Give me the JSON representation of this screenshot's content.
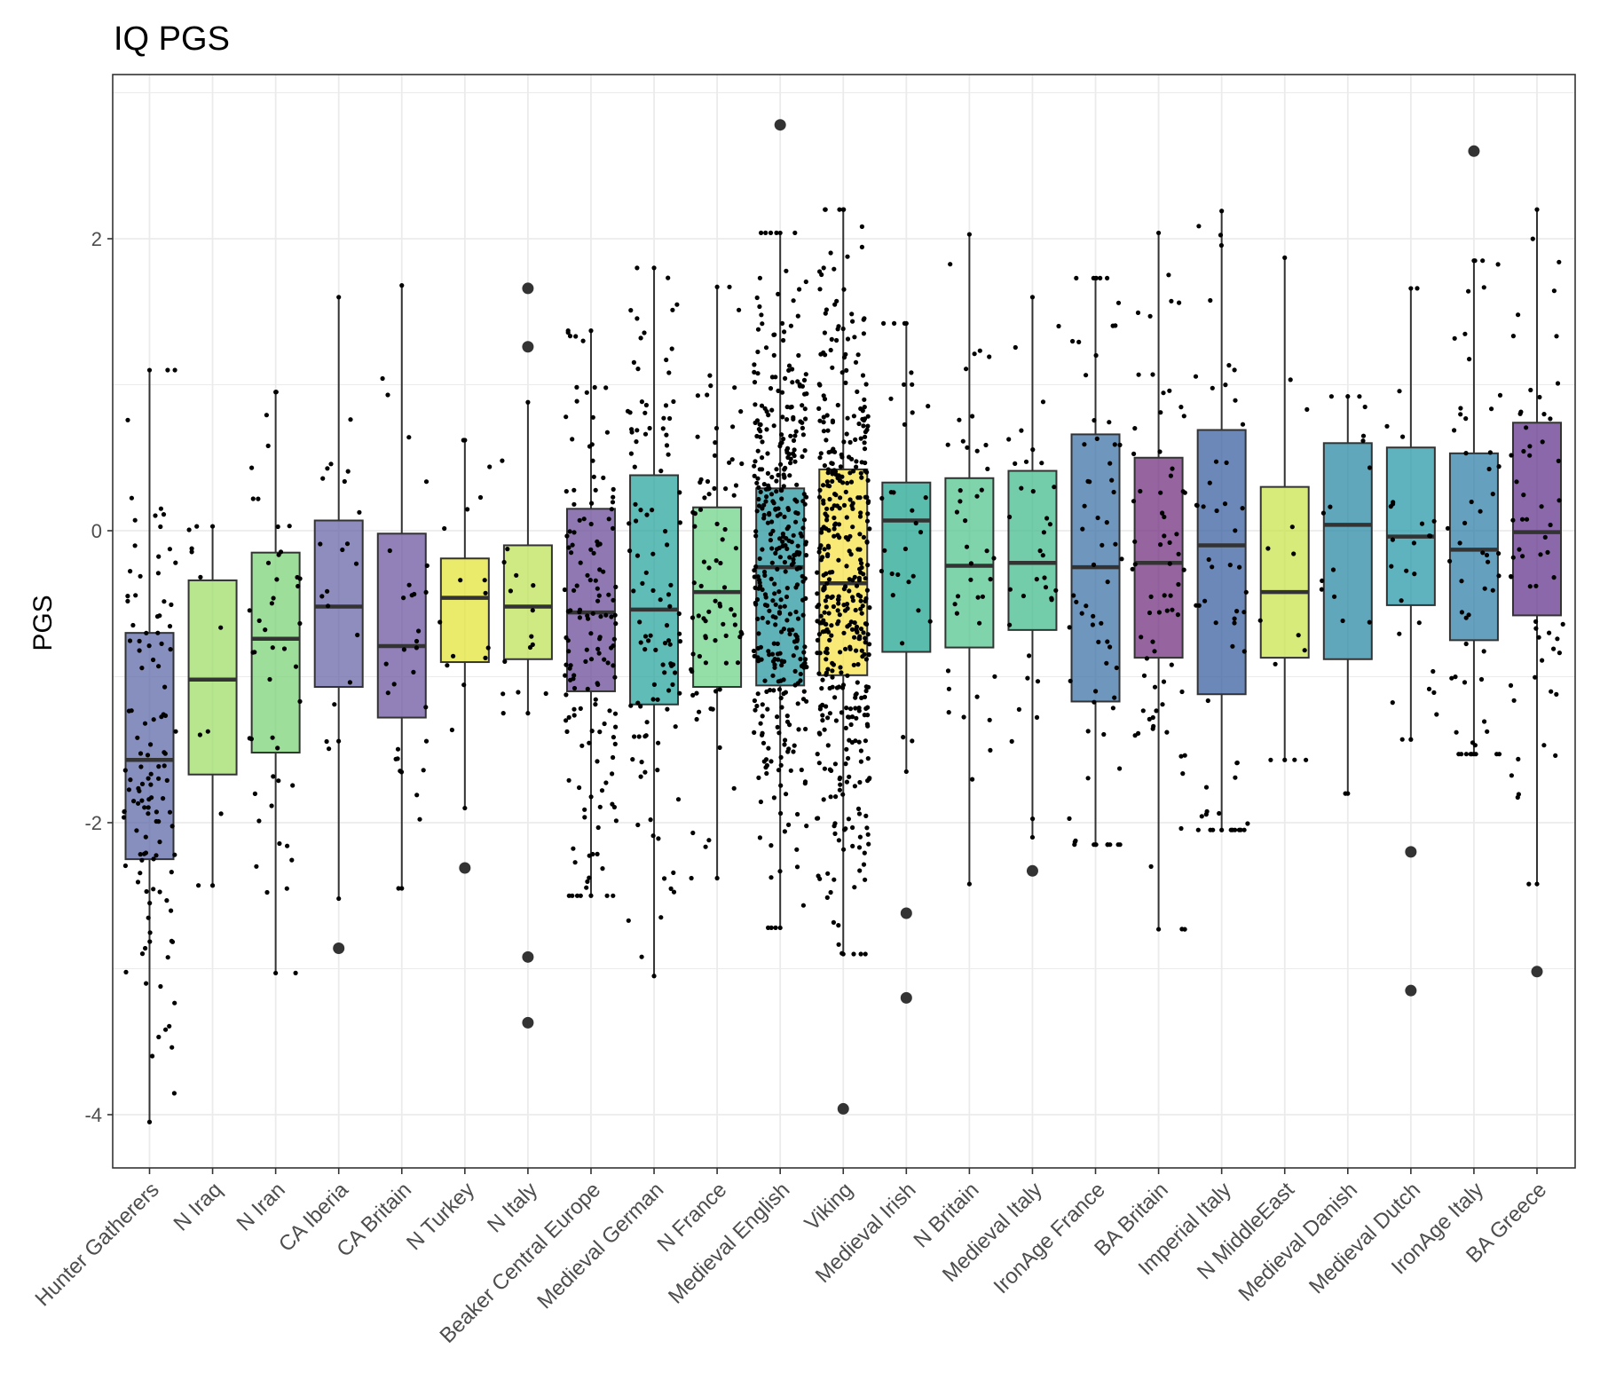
{
  "chart_data": {
    "type": "boxplot",
    "title": "IQ PGS",
    "xlabel": "",
    "ylabel": "PGS",
    "ylim": [
      -4.4,
      3.1
    ],
    "yticks": [
      -4,
      -2,
      0,
      2
    ],
    "ytick_labels": [
      "-4",
      "-2",
      "0",
      "2"
    ],
    "grid": true,
    "legend": "none",
    "categories": [
      "Hunter Gatherers",
      "N Iraq",
      "N Iran",
      "CA Iberia",
      "CA Britain",
      "N Turkey",
      "N Italy",
      "Beaker Central Europe",
      "Medieval German",
      "N France",
      "Medieval English",
      "Viking",
      "Medieval Irish",
      "N Britain",
      "Medieval Italy",
      "IronAge France",
      "BA Britain",
      "Imperial Italy",
      "N MiddleEast",
      "Medieval Danish",
      "Medieval Dutch",
      "IronAge Italy",
      "BA Greece"
    ],
    "boxes": [
      {
        "name": "Hunter Gatherers",
        "color": "#5e6aa8",
        "q1": -2.25,
        "median": -1.57,
        "q3": -0.7,
        "whisker_low": -4.05,
        "whisker_high": 1.1,
        "outliers": [],
        "n_points": 120
      },
      {
        "name": "N Iraq",
        "color": "#9fdd6a",
        "q1": -1.67,
        "median": -1.02,
        "q3": -0.34,
        "whisker_low": -2.43,
        "whisker_high": 0.03,
        "outliers": [],
        "n_points": 10
      },
      {
        "name": "N Iran",
        "color": "#7ed37a",
        "q1": -1.52,
        "median": -0.74,
        "q3": -0.15,
        "whisker_low": -3.03,
        "whisker_high": 0.95,
        "outliers": [],
        "n_points": 45
      },
      {
        "name": "CA Iberia",
        "color": "#6a66a8",
        "q1": -1.07,
        "median": -0.52,
        "q3": 0.07,
        "whisker_low": -2.52,
        "whisker_high": 1.6,
        "outliers": [
          -2.86
        ],
        "n_points": 20
      },
      {
        "name": "CA Britain",
        "color": "#6d55a0",
        "q1": -1.28,
        "median": -0.79,
        "q3": -0.02,
        "whisker_low": -2.45,
        "whisker_high": 1.68,
        "outliers": [],
        "n_points": 30
      },
      {
        "name": "N Turkey",
        "color": "#e4e43a",
        "q1": -0.9,
        "median": -0.46,
        "q3": -0.19,
        "whisker_low": -1.9,
        "whisker_high": 0.62,
        "outliers": [
          -2.31
        ],
        "n_points": 15
      },
      {
        "name": "N Italy",
        "color": "#bfe35a",
        "q1": -0.88,
        "median": -0.52,
        "q3": -0.1,
        "whisker_low": -1.25,
        "whisker_high": 0.88,
        "outliers": [
          1.66,
          1.26,
          -2.92,
          -3.37
        ],
        "n_points": 15
      },
      {
        "name": "Beaker Central Europe",
        "color": "#6b4c9a",
        "q1": -1.1,
        "median": -0.56,
        "q3": 0.15,
        "whisker_low": -2.5,
        "whisker_high": 1.37,
        "outliers": [],
        "n_points": 150
      },
      {
        "name": "Medieval German",
        "color": "#2aa69f",
        "q1": -1.19,
        "median": -0.54,
        "q3": 0.38,
        "whisker_low": -3.05,
        "whisker_high": 1.8,
        "outliers": [],
        "n_points": 110
      },
      {
        "name": "N France",
        "color": "#6fd48a",
        "q1": -1.07,
        "median": -0.42,
        "q3": 0.16,
        "whisker_low": -2.38,
        "whisker_high": 1.67,
        "outliers": [],
        "n_points": 80
      },
      {
        "name": "Medieval English",
        "color": "#2a98a0",
        "q1": -1.06,
        "median": -0.25,
        "q3": 0.29,
        "whisker_low": -2.72,
        "whisker_high": 2.04,
        "outliers": [
          2.78
        ],
        "n_points": 400
      },
      {
        "name": "Viking",
        "color": "#f7e34a",
        "q1": -0.99,
        "median": -0.36,
        "q3": 0.42,
        "whisker_low": -2.9,
        "whisker_high": 2.2,
        "outliers": [
          -3.96
        ],
        "n_points": 450
      },
      {
        "name": "Medieval Irish",
        "color": "#23a592",
        "q1": -0.83,
        "median": 0.07,
        "q3": 0.33,
        "whisker_low": -1.65,
        "whisker_high": 1.42,
        "outliers": [
          -2.62,
          -3.2
        ],
        "n_points": 30
      },
      {
        "name": "N Britain",
        "color": "#56c690",
        "q1": -0.8,
        "median": -0.24,
        "q3": 0.36,
        "whisker_low": -2.42,
        "whisker_high": 2.03,
        "outliers": [],
        "n_points": 40
      },
      {
        "name": "Medieval Italy",
        "color": "#45bc8d",
        "q1": -0.68,
        "median": -0.22,
        "q3": 0.41,
        "whisker_low": -2.1,
        "whisker_high": 1.6,
        "outliers": [
          -2.33
        ],
        "n_points": 35
      },
      {
        "name": "IronAge France",
        "color": "#3f74a8",
        "q1": -1.17,
        "median": -0.25,
        "q3": 0.66,
        "whisker_low": -2.15,
        "whisker_high": 1.73,
        "outliers": [],
        "n_points": 65
      },
      {
        "name": "BA Britain",
        "color": "#73307f",
        "q1": -0.87,
        "median": -0.22,
        "q3": 0.5,
        "whisker_low": -2.73,
        "whisker_high": 2.04,
        "outliers": [],
        "n_points": 70
      },
      {
        "name": "Imperial Italy",
        "color": "#3a60a0",
        "q1": -1.12,
        "median": -0.1,
        "q3": 0.69,
        "whisker_low": -2.05,
        "whisker_high": 2.19,
        "outliers": [],
        "n_points": 55
      },
      {
        "name": "N MiddleEast",
        "color": "#c9e44d",
        "q1": -0.87,
        "median": -0.42,
        "q3": 0.3,
        "whisker_low": -1.57,
        "whisker_high": 1.87,
        "outliers": [],
        "n_points": 12
      },
      {
        "name": "Medieval Danish",
        "color": "#2c8aa6",
        "q1": -0.88,
        "median": 0.04,
        "q3": 0.6,
        "whisker_low": -1.8,
        "whisker_high": 0.92,
        "outliers": [],
        "n_points": 15
      },
      {
        "name": "Medieval Dutch",
        "color": "#2a9aaa",
        "q1": -0.51,
        "median": -0.04,
        "q3": 0.57,
        "whisker_low": -1.43,
        "whisker_high": 1.66,
        "outliers": [
          -2.2,
          -3.15
        ],
        "n_points": 25
      },
      {
        "name": "IronAge Italy",
        "color": "#3282aa",
        "q1": -0.75,
        "median": -0.13,
        "q3": 0.53,
        "whisker_low": -1.53,
        "whisker_high": 1.85,
        "outliers": [
          2.6
        ],
        "n_points": 55
      },
      {
        "name": "BA Greece",
        "color": "#64358e",
        "q1": -0.58,
        "median": -0.01,
        "q3": 0.74,
        "whisker_low": -2.42,
        "whisker_high": 2.2,
        "outliers": [
          -3.02
        ],
        "n_points": 60
      }
    ]
  }
}
